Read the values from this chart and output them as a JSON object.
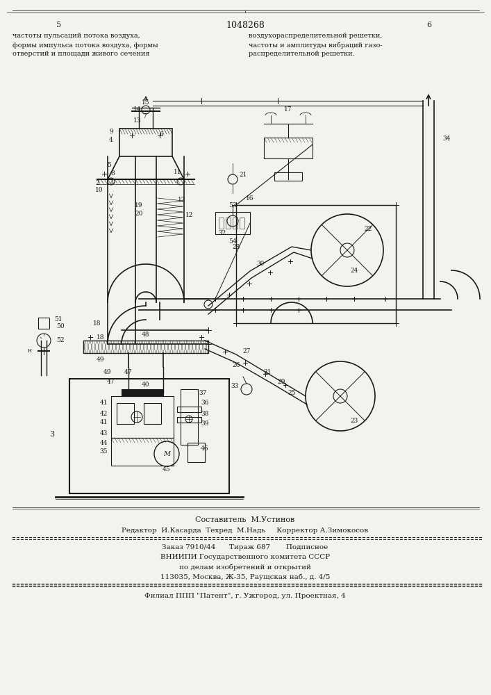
{
  "patent_number": "1048268",
  "page_left": "5",
  "page_right": "6",
  "header_left_lines": [
    "частоты пульсаций потока воздуха,",
    "формы импульса потока воздуха, формы",
    "отверстий и площади живого сечения"
  ],
  "header_right_lines": [
    "воздухораспределительной решетки,",
    "частоты и амплитуды вибраций газо-",
    "распределительной решетки."
  ],
  "footer_line1": "Составитель  М.Устинов",
  "footer_line2": "Редактор  И.Касарда  Техред  М.Надь     Корректор А.Зимокосов",
  "footer_line3": "Заказ 7910/44      Тираж 687       Подписное",
  "footer_line4": "ВНИИПИ Государственного комитета СССР",
  "footer_line5": "по делам изобретений и открытий",
  "footer_line6": "113035, Москва, Ж-35, Раущская наб., д. 4/5",
  "footer_line7": "Филиал ППП \"Патент\", г. Ужгород, ул. Проектная, 4",
  "bg_color": "#f2f2ee",
  "line_color": "#1a1a1a",
  "text_color": "#1a1a1a"
}
